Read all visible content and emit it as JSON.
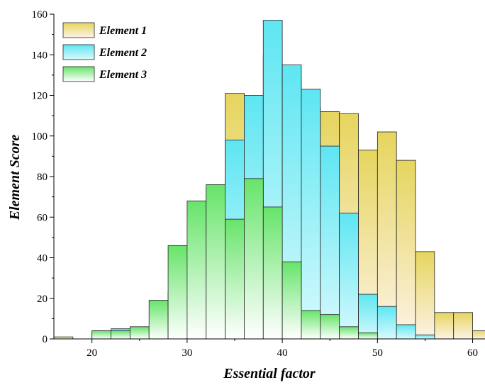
{
  "chart_data": {
    "type": "bar",
    "subtype": "overlapping-histogram",
    "title": "",
    "xlabel": "Essential factor",
    "ylabel": "Element Score",
    "xlim": [
      16,
      61.3
    ],
    "ylim": [
      0,
      160
    ],
    "x_ticks": [
      20,
      30,
      40,
      50,
      60
    ],
    "y_ticks": [
      0,
      20,
      40,
      60,
      80,
      100,
      120,
      140,
      160
    ],
    "bin_width": 2,
    "bin_starts": [
      16,
      18,
      20,
      22,
      24,
      26,
      28,
      30,
      32,
      34,
      36,
      38,
      40,
      42,
      44,
      46,
      48,
      50,
      52,
      54,
      56,
      58,
      60
    ],
    "legend_position": "top-left",
    "grid": false,
    "series": [
      {
        "name": "Element 1",
        "color_top": "#e6d55e",
        "color_bottom": "#fdf3e6",
        "values": [
          1,
          0,
          0,
          0,
          0,
          0,
          0,
          0,
          0,
          121,
          0,
          140,
          128,
          114,
          112,
          111,
          93,
          102,
          88,
          43,
          13,
          13,
          4
        ]
      },
      {
        "name": "Element 2",
        "color_top": "#5ee6f2",
        "color_bottom": "#d9fafd",
        "values": [
          0,
          0,
          4,
          5,
          0,
          0,
          23,
          50,
          74,
          98,
          120,
          157,
          135,
          123,
          95,
          62,
          22,
          16,
          7,
          2,
          0,
          0,
          0
        ]
      },
      {
        "name": "Element 3",
        "color_top": "#67e46a",
        "color_bottom": "#ffffff",
        "values": [
          0,
          0,
          4,
          4,
          6,
          19,
          46,
          68,
          76,
          59,
          79,
          65,
          38,
          14,
          12,
          6,
          3,
          0,
          0,
          0,
          0,
          0,
          0
        ]
      }
    ]
  }
}
